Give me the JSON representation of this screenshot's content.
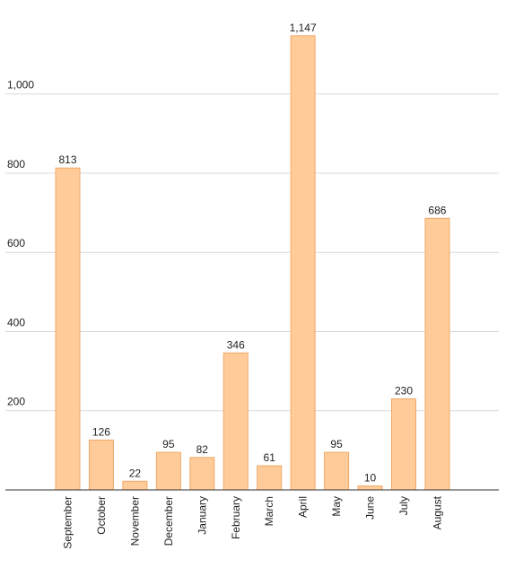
{
  "chart_data": {
    "type": "bar",
    "title": "",
    "xlabel": "",
    "ylabel": "",
    "categories": [
      "September",
      "October",
      "November",
      "December",
      "January",
      "February",
      "March",
      "April",
      "May",
      "June",
      "July",
      "August"
    ],
    "values": [
      813,
      126,
      22,
      95,
      82,
      346,
      61,
      1147,
      95,
      10,
      230,
      686
    ],
    "value_labels": [
      "813",
      "126",
      "22",
      "95",
      "82",
      "346",
      "61",
      "1,147",
      "95",
      "10",
      "230",
      "686"
    ],
    "ylim": [
      0,
      1250
    ],
    "yticks": [
      200,
      400,
      600,
      800,
      1000
    ],
    "ytick_labels": [
      "200",
      "400",
      "600",
      "800",
      "1,000"
    ],
    "grid": true,
    "legend": "none",
    "colors": {
      "bar_fill": "#ffcc99",
      "bar_stroke": "#f0a868",
      "gridline": "#d9d9d9",
      "axis": "#333333"
    }
  }
}
